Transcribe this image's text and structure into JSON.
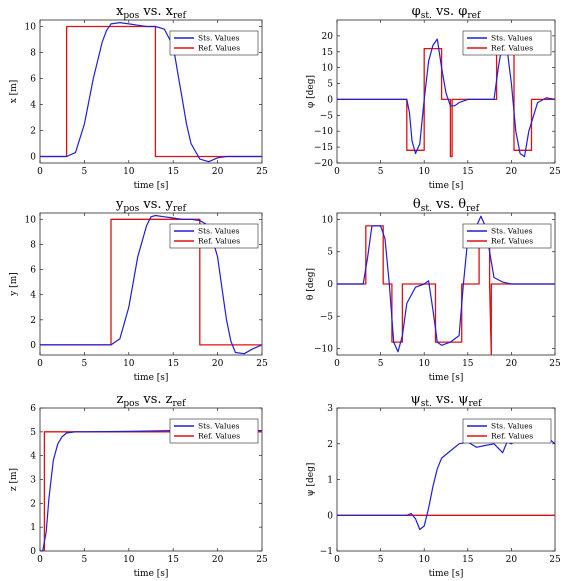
{
  "colors": {
    "state": "#1f1fd6",
    "reference": "#e01010"
  },
  "chart_data": [
    {
      "type": "line",
      "title": "x_pos vs. x_ref",
      "title_main": "x",
      "title_sub1": "pos",
      "title_mid": " vs. x",
      "title_sub2": "ref",
      "xlabel": "time [s]",
      "ylabel": "x [m]",
      "xlim": [
        0,
        25
      ],
      "ylim": [
        -0.5,
        10.5
      ],
      "xticks": [
        0,
        5,
        10,
        15,
        20,
        25
      ],
      "yticks": [
        0,
        2,
        4,
        6,
        8,
        10
      ],
      "legend": [
        "Sts. Values",
        "Ref. Values"
      ],
      "series": [
        {
          "name": "Sts. Values",
          "x": [
            0,
            3,
            4,
            5,
            6,
            7,
            7.5,
            8,
            9,
            10,
            11,
            12,
            13,
            14,
            15,
            15.5,
            16,
            16.5,
            17,
            18,
            19,
            20,
            21,
            22,
            25
          ],
          "y": [
            0,
            0,
            0.3,
            2.5,
            6,
            8.8,
            9.7,
            10.2,
            10.3,
            10.2,
            10.1,
            10,
            10,
            9.8,
            8.5,
            6.5,
            4.5,
            2.5,
            1,
            -0.2,
            -0.4,
            -0.1,
            0,
            0,
            0
          ]
        },
        {
          "name": "Ref. Values",
          "x": [
            0,
            3,
            3,
            13,
            13,
            25
          ],
          "y": [
            0,
            0,
            10,
            10,
            0,
            0
          ]
        }
      ]
    },
    {
      "type": "line",
      "title": "φ_st. vs. φ_ref",
      "title_main": "φ",
      "title_sub1": "st.",
      "title_mid": " vs. φ",
      "title_sub2": "ref",
      "xlabel": "time [s]",
      "ylabel": "φ [deg]",
      "xlim": [
        0,
        25
      ],
      "ylim": [
        -20,
        25
      ],
      "xticks": [
        0,
        5,
        10,
        15,
        20,
        25
      ],
      "yticks": [
        -20,
        -15,
        -10,
        -5,
        0,
        5,
        10,
        15,
        20
      ],
      "legend": [
        "Sts. Values",
        "Ref. Values"
      ],
      "series": [
        {
          "name": "Sts. Values",
          "x": [
            0,
            8,
            8.3,
            8.6,
            9,
            9.5,
            10,
            10.5,
            11,
            11.5,
            12,
            12.5,
            13,
            13.5,
            14,
            15,
            17,
            18,
            18.5,
            19,
            19.5,
            20,
            20.5,
            21,
            21.5,
            22,
            23,
            24,
            25
          ],
          "y": [
            0,
            0,
            -4,
            -13,
            -17,
            -14,
            0,
            12,
            17,
            19,
            10,
            2,
            -2,
            -2,
            -1,
            0,
            0,
            0,
            10,
            18,
            16,
            5,
            -10,
            -17,
            -18,
            -10,
            -1,
            0.5,
            0
          ]
        },
        {
          "name": "Ref. Values",
          "x": [
            0,
            8,
            8,
            10,
            10,
            12,
            12,
            13,
            13,
            13.2,
            13.2,
            18.3,
            18.3,
            20.3,
            20.3,
            22.3,
            22.3,
            25
          ],
          "y": [
            0,
            0,
            -16,
            -16,
            16,
            16,
            0,
            0,
            -18,
            -18,
            0,
            0,
            16,
            16,
            -16,
            -16,
            0,
            0
          ]
        }
      ]
    },
    {
      "type": "line",
      "title": "y_pos vs. y_ref",
      "title_main": "y",
      "title_sub1": "pos",
      "title_mid": " vs. y",
      "title_sub2": "ref",
      "xlabel": "time [s]",
      "ylabel": "y [m]",
      "xlim": [
        0,
        25
      ],
      "ylim": [
        -0.8,
        10.5
      ],
      "xticks": [
        0,
        5,
        10,
        15,
        20,
        25
      ],
      "yticks": [
        0,
        2,
        4,
        6,
        8,
        10
      ],
      "legend": [
        "Sts. Values",
        "Ref. Values"
      ],
      "series": [
        {
          "name": "Sts. Values",
          "x": [
            0,
            8,
            9,
            10,
            11,
            12,
            12.5,
            13,
            14,
            15,
            16,
            17,
            18,
            19,
            20,
            20.5,
            21,
            21.5,
            22,
            23,
            24,
            25
          ],
          "y": [
            0,
            0,
            0.5,
            3,
            7,
            9.5,
            10.2,
            10.3,
            10.2,
            10.1,
            10,
            10,
            9.9,
            9.5,
            7,
            4.5,
            2,
            0.3,
            -0.6,
            -0.7,
            -0.3,
            0
          ]
        },
        {
          "name": "Ref. Values",
          "x": [
            0,
            8,
            8,
            18,
            18,
            25
          ],
          "y": [
            0,
            0,
            10,
            10,
            0,
            0
          ]
        }
      ]
    },
    {
      "type": "line",
      "title": "θ_st. vs. θ_ref",
      "title_main": "θ",
      "title_sub1": "st.",
      "title_mid": " vs. θ",
      "title_sub2": "ref",
      "xlabel": "time [s]",
      "ylabel": "θ [deg]",
      "xlim": [
        0,
        25
      ],
      "ylim": [
        -11,
        11
      ],
      "xticks": [
        0,
        5,
        10,
        15,
        20,
        25
      ],
      "yticks": [
        -10,
        -5,
        0,
        5,
        10
      ],
      "legend": [
        "Sts. Values",
        "Ref. Values"
      ],
      "series": [
        {
          "name": "Sts. Values",
          "x": [
            0,
            3,
            3.5,
            4,
            5,
            5.5,
            6,
            6.5,
            7,
            7.5,
            8,
            9,
            10,
            10.5,
            11,
            11.5,
            12,
            13,
            14,
            14.5,
            15,
            15.5,
            16,
            16.5,
            17,
            17.5,
            18,
            19,
            20,
            21,
            25
          ],
          "y": [
            0,
            0,
            4,
            9,
            9,
            7,
            0,
            -9,
            -10.5,
            -8,
            -3,
            -0.5,
            0,
            0.5,
            -4,
            -9,
            -9.5,
            -9,
            -8,
            0,
            7,
            9,
            9,
            10.5,
            9,
            5,
            1,
            0.3,
            0,
            0,
            0
          ]
        },
        {
          "name": "Ref. Values",
          "x": [
            0,
            3.3,
            3.3,
            5.3,
            5.3,
            6.3,
            6.3,
            7.5,
            7.5,
            11.3,
            11.3,
            14.3,
            14.3,
            16.3,
            16.3,
            17.5,
            17.5,
            17.7,
            17.7,
            25
          ],
          "y": [
            0,
            0,
            9,
            9,
            0,
            0,
            -9,
            -9,
            0,
            0,
            -9,
            -9,
            0,
            0,
            9,
            9,
            0,
            -11,
            0,
            0
          ]
        }
      ]
    },
    {
      "type": "line",
      "title": "z_pos vs. z_ref",
      "title_main": "z",
      "title_sub1": "pos",
      "title_mid": " vs. z",
      "title_sub2": "ref",
      "xlabel": "time [s]",
      "ylabel": "z [m]",
      "xlim": [
        0,
        25
      ],
      "ylim": [
        0,
        6
      ],
      "xticks": [
        0,
        5,
        10,
        15,
        20,
        25
      ],
      "yticks": [
        0,
        1,
        2,
        3,
        4,
        5,
        6
      ],
      "legend": [
        "Sts. Values",
        "Ref. Values"
      ],
      "series": [
        {
          "name": "Sts. Values",
          "x": [
            0,
            0.3,
            0.7,
            1,
            1.5,
            2,
            2.5,
            3,
            4,
            5,
            10,
            15,
            20,
            25
          ],
          "y": [
            0,
            0,
            0.8,
            2.2,
            3.8,
            4.5,
            4.8,
            4.95,
            5,
            5,
            5.02,
            5.05,
            5.05,
            5.05
          ]
        },
        {
          "name": "Ref. Values",
          "x": [
            0,
            0.5,
            0.5,
            25
          ],
          "y": [
            0,
            0,
            5,
            5
          ]
        }
      ]
    },
    {
      "type": "line",
      "title": "ψ_st. vs. ψ_ref",
      "title_main": "ψ",
      "title_sub1": "st.",
      "title_mid": " vs. ψ",
      "title_sub2": "ref",
      "xlabel": "time [s]",
      "ylabel": "ψ [deg]",
      "xlim": [
        0,
        25
      ],
      "ylim": [
        -1,
        3
      ],
      "xticks": [
        0,
        5,
        10,
        15,
        20,
        25
      ],
      "yticks": [
        -1,
        0,
        1,
        2,
        3
      ],
      "legend": [
        "Sts. Values",
        "Ref. Values"
      ],
      "series": [
        {
          "name": "Sts. Values",
          "x": [
            0,
            8,
            8.5,
            9,
            9.5,
            10,
            10.5,
            11,
            11.5,
            12,
            12.5,
            13,
            14,
            15,
            16,
            17,
            18,
            19,
            19.5,
            20,
            21,
            22,
            23,
            24,
            25
          ],
          "y": [
            0,
            0,
            0.05,
            -0.1,
            -0.4,
            -0.3,
            0.2,
            0.8,
            1.3,
            1.6,
            1.7,
            1.8,
            2,
            2.05,
            1.9,
            1.95,
            2,
            1.75,
            2.05,
            2,
            2.2,
            2.1,
            2.4,
            2.2,
            2
          ]
        },
        {
          "name": "Ref. Values",
          "x": [
            0,
            25
          ],
          "y": [
            0,
            0
          ]
        }
      ]
    }
  ]
}
